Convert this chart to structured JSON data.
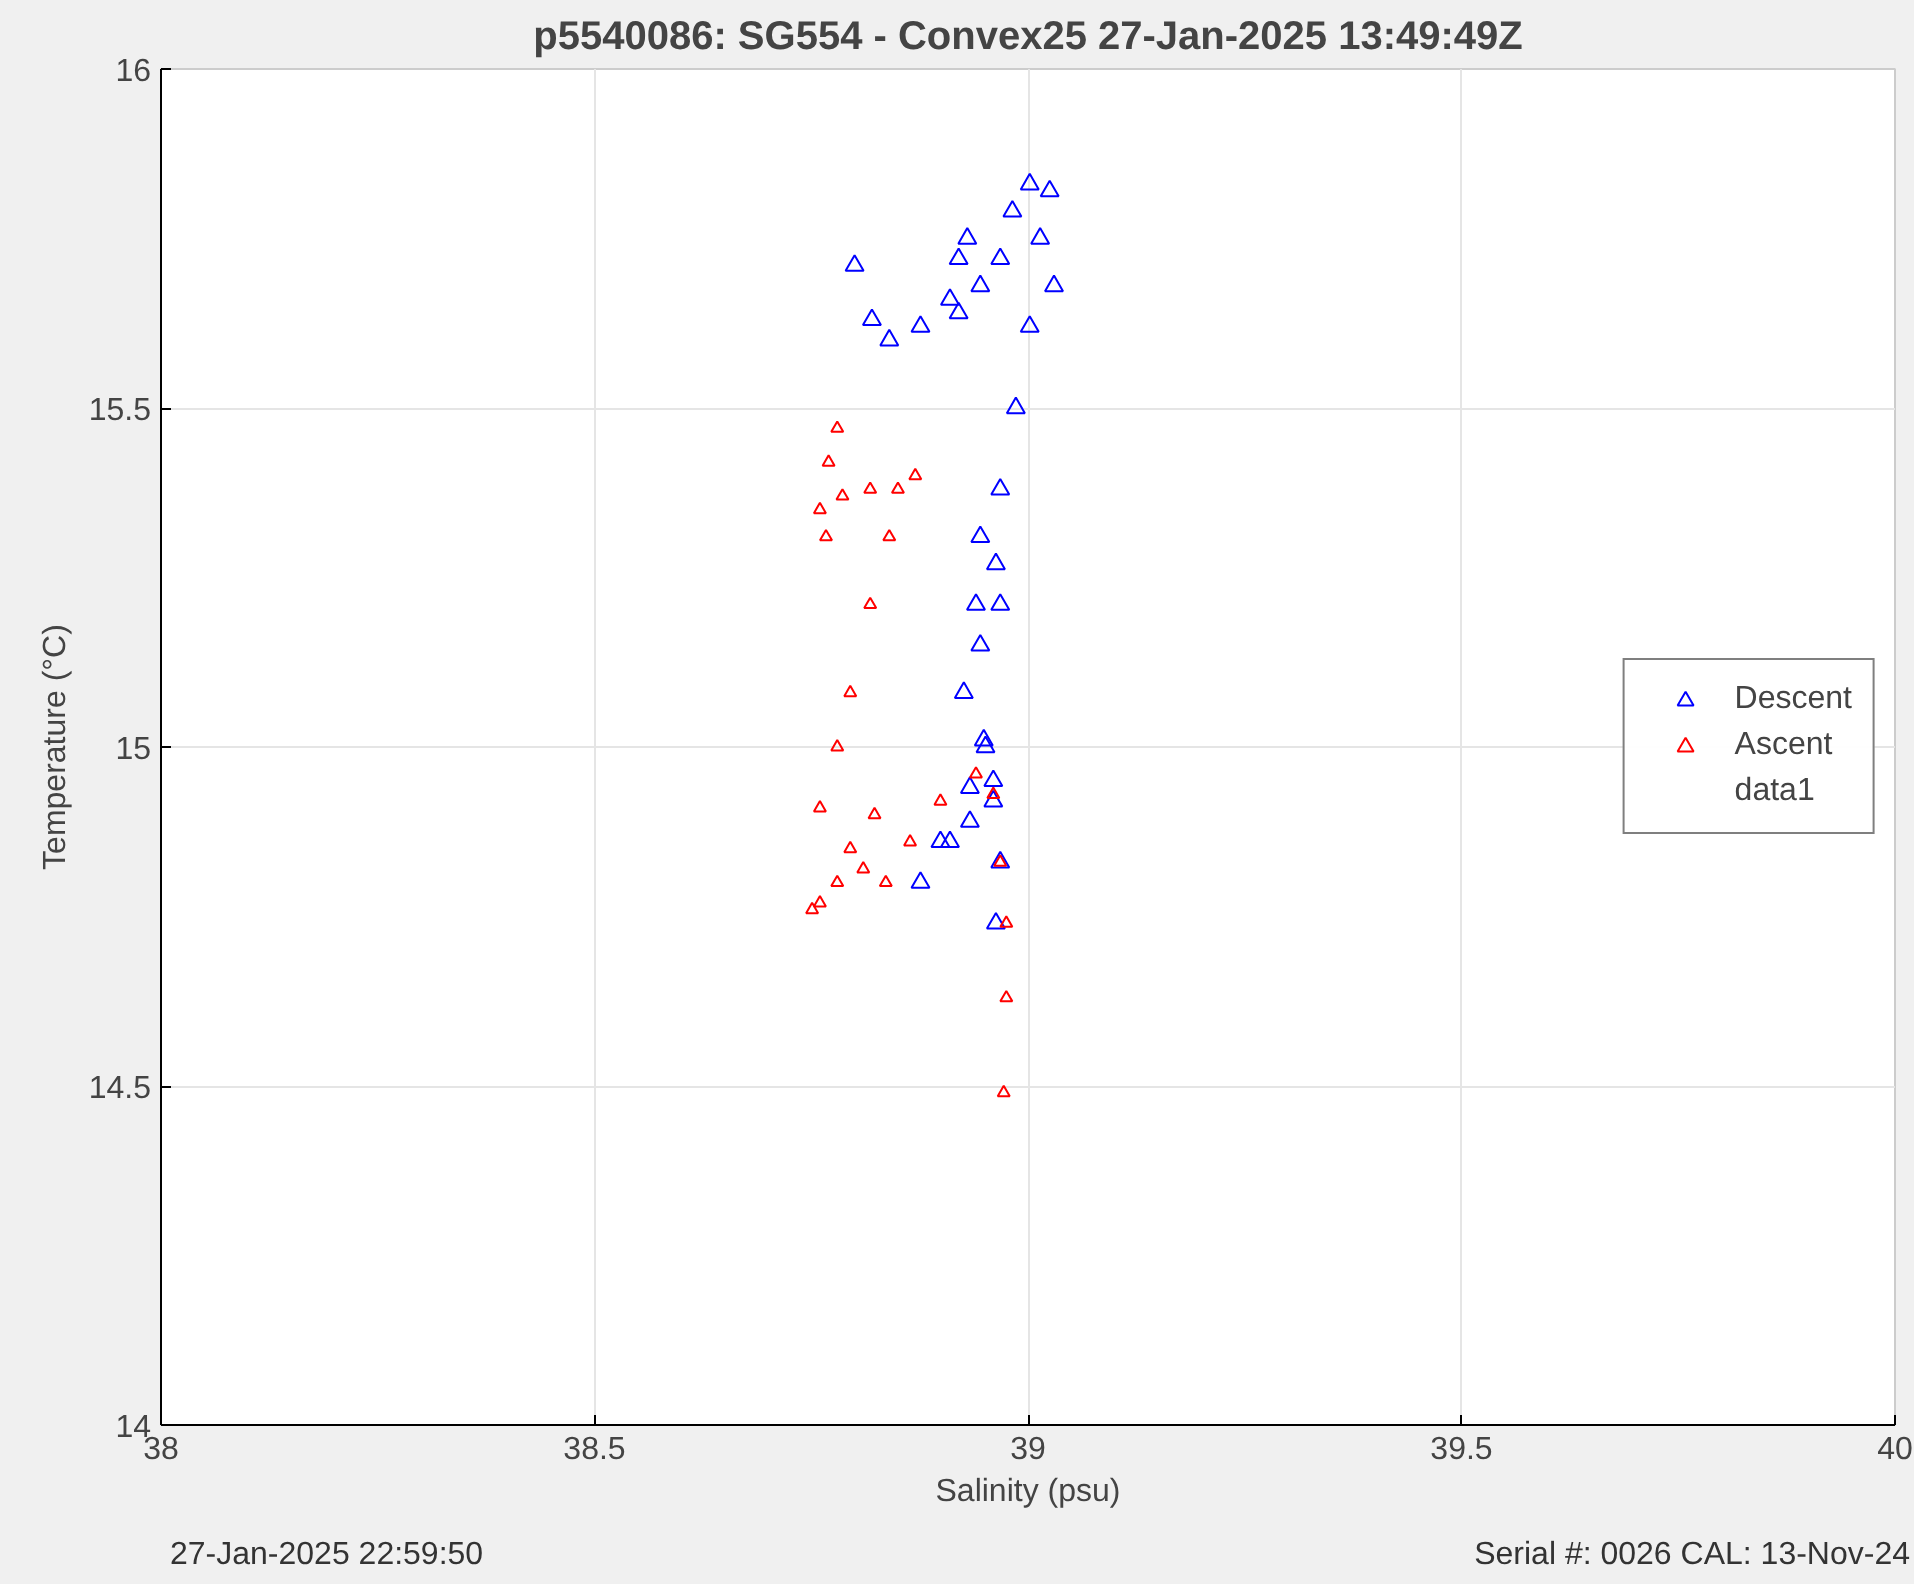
{
  "chart_data": {
    "type": "scatter",
    "title": "p5540086: SG554 - Convex25 27-Jan-2025 13:49:49Z",
    "xlabel": "Salinity (psu)",
    "ylabel": "Temperature (°C)",
    "xlim": [
      38,
      40
    ],
    "ylim": [
      14,
      16
    ],
    "xticks": [
      38,
      38.5,
      39,
      39.5,
      40
    ],
    "yticks": [
      14,
      14.5,
      15,
      15.5,
      16
    ],
    "grid": true,
    "legend": "right",
    "series": [
      {
        "name": "Descent",
        "color": "#0000ff",
        "marker": "triangle",
        "x": [
          38.8,
          38.82,
          38.84,
          38.876,
          38.91,
          38.92,
          38.93,
          38.92,
          38.945,
          38.968,
          38.982,
          39.002,
          39.025,
          39.014,
          39.03,
          39.002,
          38.986,
          38.968,
          38.945,
          38.963,
          38.94,
          38.968,
          38.945,
          38.926,
          38.949,
          38.96,
          38.933,
          38.91,
          38.876,
          38.899,
          38.933,
          38.951,
          38.96,
          38.968,
          38.963
        ],
        "values": [
          15.71,
          15.63,
          15.6,
          15.62,
          15.66,
          15.72,
          15.75,
          15.64,
          15.68,
          15.72,
          15.79,
          15.83,
          15.82,
          15.75,
          15.68,
          15.62,
          15.5,
          15.38,
          15.31,
          15.27,
          15.21,
          15.21,
          15.15,
          15.08,
          15.01,
          14.95,
          14.89,
          14.86,
          14.8,
          14.86,
          14.94,
          15.0,
          14.92,
          14.83,
          14.74
        ]
      },
      {
        "name": "Ascent",
        "color": "#ff0000",
        "marker": "triangle",
        "x": [
          38.972,
          38.975,
          38.975,
          38.968,
          38.96,
          38.94,
          38.899,
          38.864,
          38.836,
          38.823,
          38.81,
          38.795,
          38.78,
          38.76,
          38.751,
          38.76,
          38.78,
          38.795,
          38.818,
          38.84,
          38.87,
          38.85,
          38.818,
          38.786,
          38.767,
          38.76,
          38.77,
          38.78
        ],
        "values": [
          14.49,
          14.63,
          14.74,
          14.83,
          14.93,
          14.96,
          14.92,
          14.86,
          14.8,
          14.9,
          14.82,
          14.85,
          14.8,
          14.77,
          14.76,
          14.91,
          15.0,
          15.08,
          15.21,
          15.31,
          15.4,
          15.38,
          15.38,
          15.37,
          15.31,
          15.35,
          15.42,
          15.47
        ]
      }
    ],
    "annotations": [
      "data1",
      "27-Jan-2025 22:59:50",
      "Serial #: 0026 CAL: 13-Nov-24"
    ]
  }
}
